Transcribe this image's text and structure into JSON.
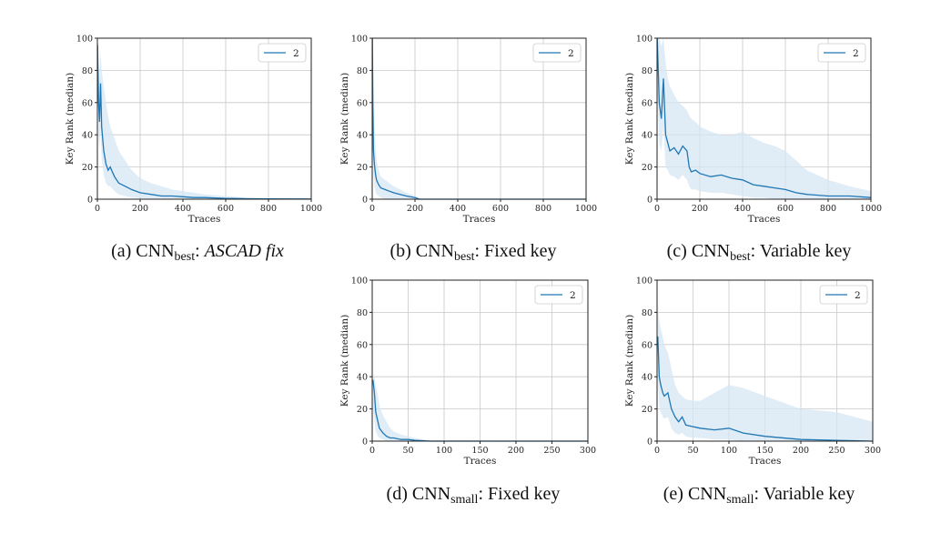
{
  "colors": {
    "line": "#1f77b4",
    "band": "#d6e6f3",
    "grid": "#c8c8c8",
    "axis": "#222222"
  },
  "chart_data": [
    {
      "id": "a",
      "type": "line",
      "xlabel": "Traces",
      "ylabel": "Key Rank (median)",
      "xlim": [
        0,
        1000
      ],
      "ylim": [
        0,
        100
      ],
      "xticks": [
        0,
        200,
        400,
        600,
        800,
        1000
      ],
      "yticks": [
        0,
        20,
        40,
        60,
        80,
        100
      ],
      "grid": true,
      "legend": {
        "position": "top-right",
        "entries": [
          "2"
        ]
      },
      "caption": {
        "prefix": "(a) CNN",
        "sub": "best",
        "rest": ": ",
        "italic": "ASCAD fix"
      },
      "series": [
        {
          "name": "2",
          "x": [
            1,
            5,
            10,
            15,
            20,
            30,
            40,
            50,
            60,
            80,
            100,
            130,
            160,
            200,
            250,
            300,
            350,
            400,
            450,
            500,
            600,
            700,
            800,
            1000
          ],
          "y": [
            96,
            62,
            48,
            72,
            45,
            30,
            22,
            18,
            20,
            14,
            10,
            8,
            6,
            4,
            3,
            2,
            2,
            1.5,
            1,
            1,
            0.5,
            0.3,
            0.2,
            0.1
          ],
          "lower": [
            80,
            40,
            30,
            45,
            25,
            15,
            10,
            8,
            8,
            5,
            3,
            2,
            1,
            0.5,
            0,
            0,
            0,
            0,
            0,
            0,
            0,
            0,
            0,
            0
          ],
          "upper": [
            100,
            85,
            75,
            92,
            80,
            70,
            60,
            52,
            45,
            38,
            30,
            24,
            18,
            13,
            10,
            8,
            6,
            5,
            4,
            3,
            2,
            1,
            0.5,
            0.3
          ]
        }
      ]
    },
    {
      "id": "b",
      "type": "line",
      "xlabel": "Traces",
      "ylabel": "Key Rank (median)",
      "xlim": [
        0,
        1000
      ],
      "ylim": [
        0,
        100
      ],
      "xticks": [
        0,
        200,
        400,
        600,
        800,
        1000
      ],
      "yticks": [
        0,
        20,
        40,
        60,
        80,
        100
      ],
      "grid": true,
      "legend": {
        "position": "top-right",
        "entries": [
          "2"
        ]
      },
      "caption": {
        "prefix": "(b) CNN",
        "sub": "best",
        "rest": ": Fixed key",
        "italic": ""
      },
      "series": [
        {
          "name": "2",
          "x": [
            1,
            3,
            6,
            10,
            15,
            20,
            30,
            40,
            60,
            80,
            100,
            130,
            160,
            200,
            220,
            300,
            1000
          ],
          "y": [
            100,
            60,
            30,
            22,
            16,
            12,
            9,
            7,
            6,
            5,
            4,
            3,
            2,
            1,
            0,
            0,
            0
          ],
          "lower": [
            90,
            30,
            15,
            8,
            5,
            3,
            2,
            1,
            0,
            0,
            0,
            0,
            0,
            0,
            0,
            0,
            0
          ],
          "upper": [
            100,
            90,
            60,
            45,
            35,
            25,
            18,
            14,
            12,
            10,
            8,
            6,
            4,
            2,
            0.5,
            0,
            0
          ]
        }
      ]
    },
    {
      "id": "c",
      "type": "line",
      "xlabel": "Traces",
      "ylabel": "Key Rank (median)",
      "xlim": [
        0,
        1000
      ],
      "ylim": [
        0,
        100
      ],
      "xticks": [
        0,
        200,
        400,
        600,
        800,
        1000
      ],
      "yticks": [
        0,
        20,
        40,
        60,
        80,
        100
      ],
      "grid": true,
      "legend": {
        "position": "top-right",
        "entries": [
          "2"
        ]
      },
      "caption": {
        "prefix": "(c) CNN",
        "sub": "best",
        "rest": ": Variable key",
        "italic": ""
      },
      "series": [
        {
          "name": "2",
          "x": [
            1,
            10,
            20,
            30,
            40,
            50,
            60,
            80,
            100,
            120,
            140,
            150,
            160,
            180,
            200,
            250,
            300,
            350,
            400,
            450,
            500,
            550,
            600,
            650,
            700,
            800,
            900,
            1000
          ],
          "y": [
            100,
            60,
            50,
            75,
            40,
            35,
            30,
            32,
            28,
            33,
            30,
            20,
            17,
            18,
            16,
            14,
            15,
            13,
            12,
            9,
            8,
            7,
            6,
            4,
            3,
            2,
            2,
            1
          ],
          "lower": [
            70,
            35,
            30,
            45,
            20,
            18,
            15,
            14,
            12,
            15,
            12,
            8,
            6,
            6,
            5,
            4,
            4,
            3,
            2,
            1,
            1,
            0,
            0,
            0,
            0,
            0,
            0,
            0
          ],
          "upper": [
            100,
            100,
            95,
            100,
            85,
            75,
            70,
            65,
            60,
            58,
            55,
            52,
            50,
            48,
            45,
            42,
            40,
            40,
            42,
            38,
            35,
            33,
            30,
            24,
            18,
            12,
            8,
            5
          ]
        }
      ]
    },
    {
      "id": "d",
      "type": "line",
      "xlabel": "Traces",
      "ylabel": "Key Rank (median)",
      "xlim": [
        0,
        300
      ],
      "ylim": [
        0,
        100
      ],
      "xticks": [
        0,
        50,
        100,
        150,
        200,
        250,
        300
      ],
      "yticks": [
        0,
        20,
        40,
        60,
        80,
        100
      ],
      "grid": true,
      "legend": {
        "position": "top-right",
        "entries": [
          "2"
        ]
      },
      "caption": {
        "prefix": "(d) CNN",
        "sub": "small",
        "rest": ": Fixed key",
        "italic": ""
      },
      "series": [
        {
          "name": "2",
          "x": [
            1,
            3,
            5,
            8,
            10,
            15,
            20,
            25,
            30,
            40,
            50,
            60,
            80,
            300
          ],
          "y": [
            38,
            30,
            18,
            12,
            8,
            5,
            3,
            2,
            2,
            1,
            1,
            0.5,
            0,
            0
          ],
          "lower": [
            20,
            12,
            6,
            3,
            2,
            1,
            0,
            0,
            0,
            0,
            0,
            0,
            0,
            0
          ],
          "upper": [
            42,
            40,
            35,
            28,
            22,
            16,
            12,
            8,
            6,
            4,
            3,
            2,
            0.5,
            0
          ]
        }
      ]
    },
    {
      "id": "e",
      "type": "line",
      "xlabel": "Traces",
      "ylabel": "Key Rank (median)",
      "xlim": [
        0,
        300
      ],
      "ylim": [
        0,
        100
      ],
      "xticks": [
        0,
        50,
        100,
        150,
        200,
        250,
        300
      ],
      "yticks": [
        0,
        20,
        40,
        60,
        80,
        100
      ],
      "grid": true,
      "legend": {
        "position": "top-right",
        "entries": [
          "2"
        ]
      },
      "caption": {
        "prefix": "(e) CNN",
        "sub": "small",
        "rest": ": Variable key",
        "italic": ""
      },
      "series": [
        {
          "name": "2",
          "x": [
            1,
            3,
            5,
            8,
            10,
            15,
            20,
            25,
            30,
            35,
            40,
            50,
            60,
            80,
            100,
            120,
            150,
            200,
            250,
            300
          ],
          "y": [
            65,
            40,
            35,
            30,
            28,
            30,
            20,
            15,
            12,
            15,
            10,
            9,
            8,
            7,
            8,
            5,
            3,
            1,
            0.5,
            0
          ],
          "lower": [
            40,
            22,
            18,
            15,
            14,
            15,
            8,
            5,
            4,
            5,
            3,
            2,
            2,
            1,
            1,
            0,
            0,
            0,
            0,
            0
          ],
          "upper": [
            85,
            75,
            70,
            65,
            60,
            55,
            45,
            35,
            30,
            28,
            26,
            25,
            25,
            30,
            35,
            33,
            28,
            20,
            18,
            12
          ]
        }
      ]
    }
  ]
}
